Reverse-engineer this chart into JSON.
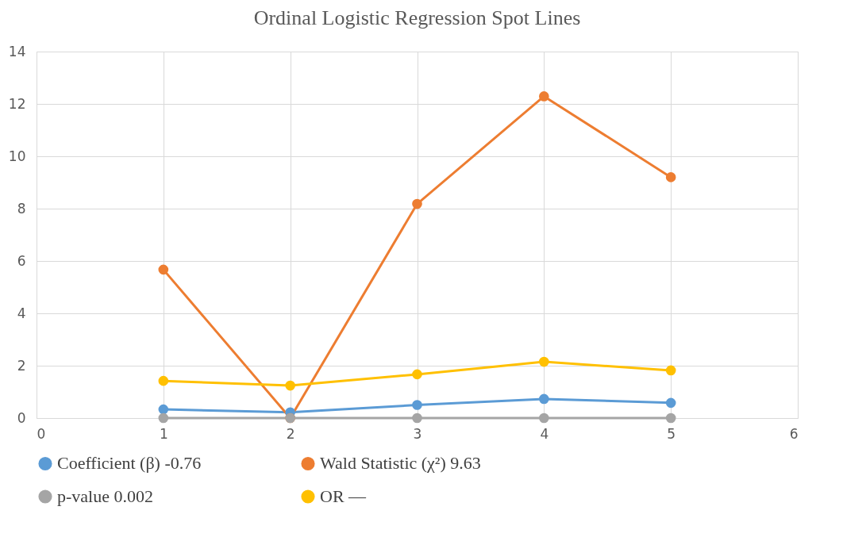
{
  "chart_data": {
    "type": "line",
    "title": "Ordinal Logistic Regression Spot Lines",
    "x": [
      1,
      2,
      3,
      4,
      5
    ],
    "series": [
      {
        "name": "Coefficient (β) -0.76",
        "color": "#5b9bd5",
        "values": [
          0.33,
          0.22,
          0.5,
          0.73,
          0.58
        ]
      },
      {
        "name": "Wald Statistic (χ²) 9.63",
        "color": "#ed7d31",
        "values": [
          5.67,
          0,
          8.18,
          12.29,
          9.2
        ]
      },
      {
        "name": "p-value 0.002",
        "color": "#a5a5a5",
        "values": [
          0,
          0,
          0,
          0,
          0
        ]
      },
      {
        "name": "OR —",
        "color": "#ffc000",
        "values": [
          1.42,
          1.24,
          1.67,
          2.15,
          1.82
        ]
      }
    ],
    "xlim": [
      0,
      6
    ],
    "xticks": [
      0,
      1,
      2,
      3,
      4,
      5,
      6
    ],
    "ylim": [
      0,
      14
    ],
    "yticks": [
      0,
      2,
      4,
      6,
      8,
      10,
      12,
      14
    ],
    "grid": true,
    "legend": "bottom",
    "marker": "circle",
    "line_style": "solid"
  }
}
